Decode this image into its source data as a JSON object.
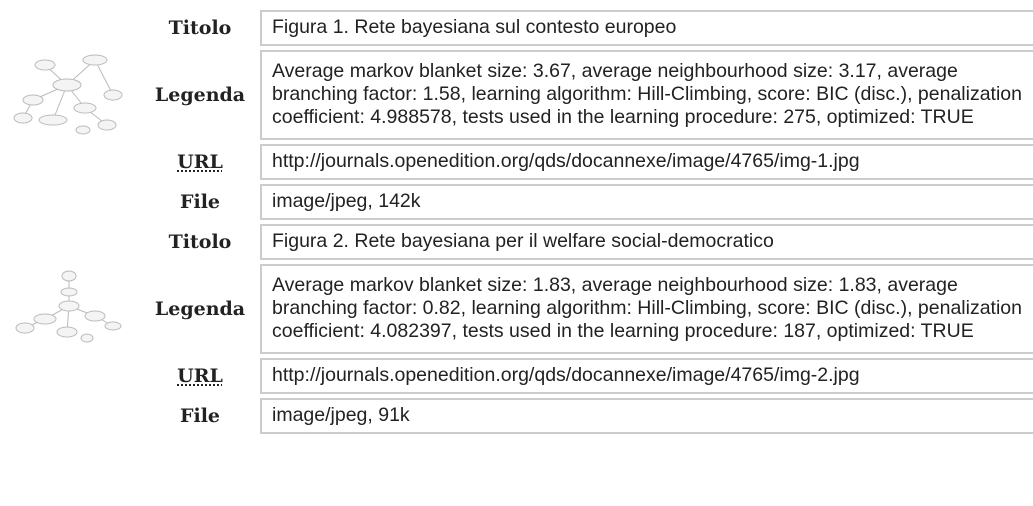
{
  "entries": [
    {
      "rows": [
        {
          "label": "Titolo",
          "value": "Figura 1. Rete bayesiana sul contesto europeo"
        },
        {
          "label": "Legenda",
          "value": "Average markov blanket size: 3.67, average neighbourhood size: 3.17, average branching factor: 1.58, learning algorithm: Hill-Climbing, score: BIC (disc.), penalization coefficient: 4.988578, tests used in the learning procedure: 275, optimized: TRUE"
        },
        {
          "label": "URL",
          "value": "http://journals.openedition.org/qds/docannexe/image/4765/img-1.jpg"
        },
        {
          "label": "File",
          "value": "image/jpeg, 142k"
        }
      ]
    },
    {
      "rows": [
        {
          "label": "Titolo",
          "value": "Figura 2. Rete bayesiana per il welfare social-democratico"
        },
        {
          "label": "Legenda",
          "value": "Average markov blanket size: 1.83, average neighbourhood size: 1.83, average branching factor: 0.82, learning algorithm: Hill-Climbing, score: BIC (disc.), penalization coefficient: 4.082397, tests used in the learning procedure: 187, optimized: TRUE"
        },
        {
          "label": "URL",
          "value": "http://journals.openedition.org/qds/docannexe/image/4765/img-2.jpg"
        },
        {
          "label": "File",
          "value": "image/jpeg, 91k"
        }
      ]
    }
  ]
}
